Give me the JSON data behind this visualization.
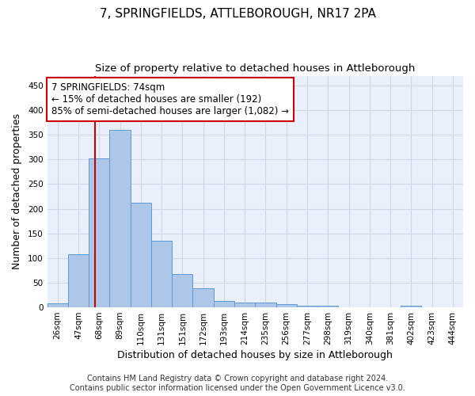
{
  "title": "7, SPRINGFIELDS, ATTLEBOROUGH, NR17 2PA",
  "subtitle": "Size of property relative to detached houses in Attleborough",
  "xlabel": "Distribution of detached houses by size in Attleborough",
  "ylabel": "Number of detached properties",
  "footer_line1": "Contains HM Land Registry data © Crown copyright and database right 2024.",
  "footer_line2": "Contains public sector information licensed under the Open Government Licence v3.0.",
  "bin_labels": [
    "26sqm",
    "47sqm",
    "68sqm",
    "89sqm",
    "110sqm",
    "131sqm",
    "151sqm",
    "172sqm",
    "193sqm",
    "214sqm",
    "235sqm",
    "256sqm",
    "277sqm",
    "298sqm",
    "319sqm",
    "340sqm",
    "381sqm",
    "402sqm",
    "423sqm",
    "444sqm"
  ],
  "bar_heights": [
    8,
    108,
    302,
    360,
    212,
    135,
    68,
    38,
    13,
    10,
    9,
    6,
    3,
    3,
    0,
    0,
    0,
    3,
    0,
    0
  ],
  "bar_color": "#aec6e8",
  "bar_edge_color": "#5b9bd5",
  "vline_color": "#cc0000",
  "annotation_line1": "7 SPRINGFIELDS: 74sqm",
  "annotation_line2": "← 15% of detached houses are smaller (192)",
  "annotation_line3": "85% of semi-detached houses are larger (1,082) →",
  "annotation_box_color": "#ffffff",
  "annotation_box_edge": "#cc0000",
  "ylim": [
    0,
    470
  ],
  "yticks": [
    0,
    50,
    100,
    150,
    200,
    250,
    300,
    350,
    400,
    450
  ],
  "grid_color": "#d0d8e8",
  "background_color": "#eaf0fb",
  "title_fontsize": 11,
  "subtitle_fontsize": 9.5,
  "axis_label_fontsize": 9,
  "tick_fontsize": 7.5,
  "footer_fontsize": 7,
  "annotation_fontsize": 8.5
}
